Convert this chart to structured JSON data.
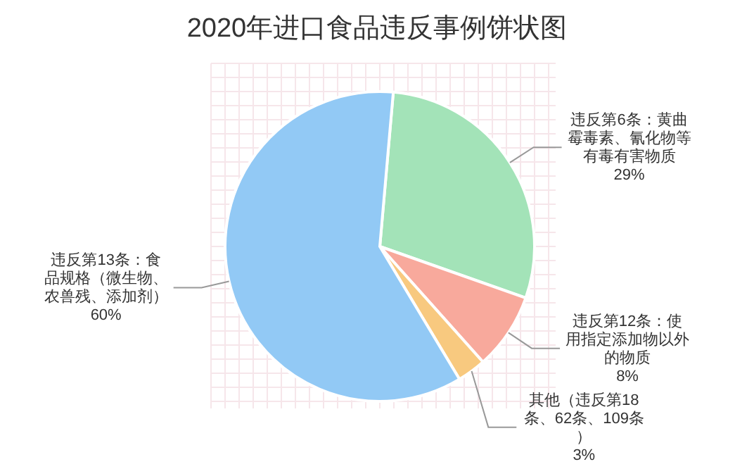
{
  "chart_data": {
    "type": "pie",
    "title": "2020年进口食品违反事例饼状图",
    "categories": [
      "违反第6条：黄曲霉毒素、氰化物等有毒有害物质",
      "违反第12条：使用指定添加物以外的物质",
      "其他（违反第18条、62条、109条）",
      "违反第13条：食品规格（微生物、农兽残、添加剂）"
    ],
    "values": [
      29,
      8,
      3,
      60
    ],
    "value_labels": [
      "29%",
      "8%",
      "3%",
      "60%"
    ],
    "colors": [
      "#a3e3b8",
      "#f8a99c",
      "#f8c97f",
      "#92c9f5"
    ],
    "grid": true
  }
}
